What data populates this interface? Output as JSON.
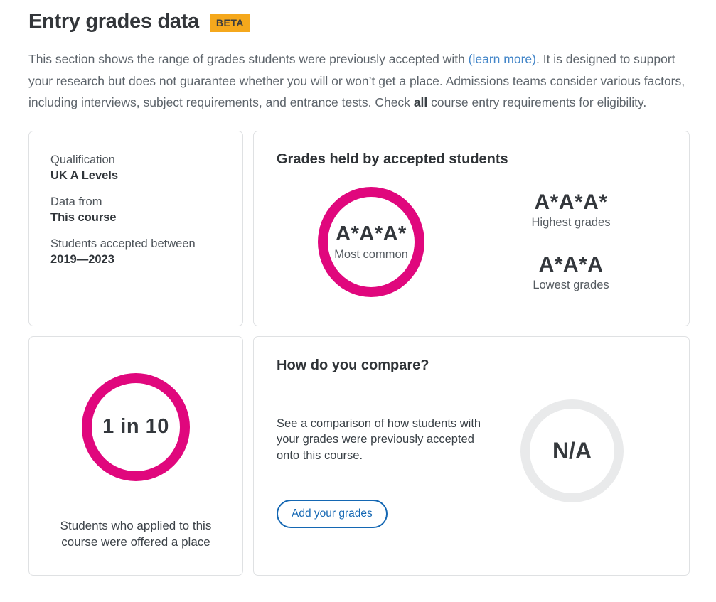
{
  "header": {
    "title": "Entry grades data",
    "beta_badge": "BETA"
  },
  "intro": {
    "part1": "This section shows the range of grades students were previously accepted with ",
    "link_text": "(learn more)",
    "part2": ". It is designed to support your research but does not guarantee whether you will or won’t get a place. Admissions teams consider various factors, including interviews, subject requirements, and entrance tests. Check ",
    "bold_word": "all",
    "part3": " course entry requirements for eligibility."
  },
  "qualification_card": {
    "rows": [
      {
        "label": "Qualification",
        "value": "UK A Levels"
      },
      {
        "label": "Data from",
        "value": "This course"
      },
      {
        "label": "Students accepted between",
        "value": "2019—2023"
      }
    ]
  },
  "grades_card": {
    "title": "Grades held by accepted students",
    "most_common": {
      "grade": "A*A*A*",
      "label": "Most common"
    },
    "highest": {
      "grade": "A*A*A*",
      "label": "Highest grades"
    },
    "lowest": {
      "grade": "A*A*A",
      "label": "Lowest grades"
    }
  },
  "offer_card": {
    "ratio": "1 in 10",
    "caption": "Students who applied to this course were offered a place"
  },
  "compare_card": {
    "title": "How do you compare?",
    "description": "See a comparison of how students with your grades were previously accepted onto this course.",
    "button_label": "Add your grades",
    "na_value": "N/A"
  },
  "colors": {
    "accent_pink": "#e0077d",
    "beta_badge_bg": "#f5a81c",
    "link_blue": "#4285c8",
    "button_blue": "#1467b3",
    "na_circle_gray": "#e9eaeb"
  }
}
